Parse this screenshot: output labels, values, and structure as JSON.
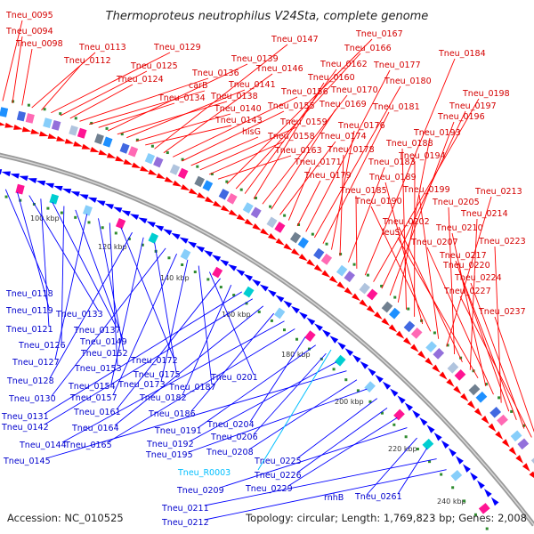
{
  "title": "Thermoproteus neutrophilus V24Sta, complete genome",
  "accession": "Accession: NC_010525",
  "topology": "Topology: circular; Length: 1,769,823 bp; Genes: 2,008",
  "colors": {
    "forward": "#ff0000",
    "reverse": "#0000ff",
    "rna": "#00bfff",
    "backbone": "#888888",
    "gc_tick": "#2e8b2e"
  },
  "kbp_ticks": [
    "100 kbp",
    "120 kbp",
    "140 kbp",
    "160 kbp",
    "180 kbp",
    "200 kbp",
    "220 kbp",
    "240 kbp"
  ],
  "forward_labels": [
    "Tneu_0095",
    "Tneu_0094",
    "Tneu_0098",
    "Tneu_0113",
    "Tneu_0112",
    "Tneu_0129",
    "Tneu_0125",
    "Tneu_0124",
    "Tneu_0136",
    "carB",
    "Tneu_0134",
    "Tneu_0139",
    "Tneu_0138",
    "Tneu_0141",
    "Tneu_0140",
    "Tneu_0143",
    "Tneu_0147",
    "Tneu_0146",
    "Tneu_0156",
    "Tneu_0155",
    "hisG",
    "Tneu_0159",
    "Tneu_0158",
    "Tneu_0163",
    "Tneu_0167",
    "Tneu_0166",
    "Tneu_0162",
    "Tneu_0160",
    "Tneu_0170",
    "Tneu_0169",
    "Tneu_0174",
    "Tneu_0171",
    "Tneu_0179",
    "Tneu_0177",
    "Tneu_0180",
    "Tneu_0181",
    "Tneu_0176",
    "Tneu_0178",
    "Tneu_0183",
    "Tneu_0185",
    "Tneu_0184",
    "Tneu_0198",
    "Tneu_0197",
    "Tneu_0196",
    "Tneu_0193",
    "Tneu_0188",
    "Tneu_0194",
    "Tneu_0189",
    "Tneu_0190",
    "Tneu_0199",
    "Tneu_0213",
    "Tneu_0205",
    "Tneu_0202",
    "Tneu_0214",
    "leuS",
    "Tneu_0210",
    "Tneu_0207",
    "Tneu_0223",
    "Tneu_0217",
    "Tneu_0220",
    "Tneu_0224",
    "Tneu_0227",
    "Tneu_0237"
  ],
  "reverse_labels": [
    "Tneu_0118",
    "Tneu_0119",
    "Tneu_0133",
    "Tneu_0121",
    "Tneu_0137",
    "Tneu_0126",
    "Tneu_0149",
    "Tneu_0127",
    "Tneu_0152",
    "Tneu_0153",
    "Tneu_0172",
    "Tneu_0128",
    "Tneu_0154",
    "Tneu_0175",
    "Tneu_0130",
    "Tneu_0157",
    "Tneu_0173",
    "Tneu_0187",
    "Tneu_0201",
    "Tneu_0161",
    "Tneu_0182",
    "Tneu_0131",
    "Tneu_0142",
    "Tneu_0164",
    "Tneu_0186",
    "Tneu_0144",
    "Tneu_0165",
    "Tneu_0204",
    "Tneu_0191",
    "Tneu_0206",
    "Tneu_0192",
    "Tneu_0145",
    "Tneu_0208",
    "Tneu_0195",
    "Tneu_0225",
    "Tneu_0226",
    "Tneu_0229",
    "Tneu_0209",
    "rnhB",
    "Tneu_0261",
    "Tneu_0211",
    "Tneu_0212"
  ],
  "rna_labels": [
    "Tneu_R0003"
  ]
}
